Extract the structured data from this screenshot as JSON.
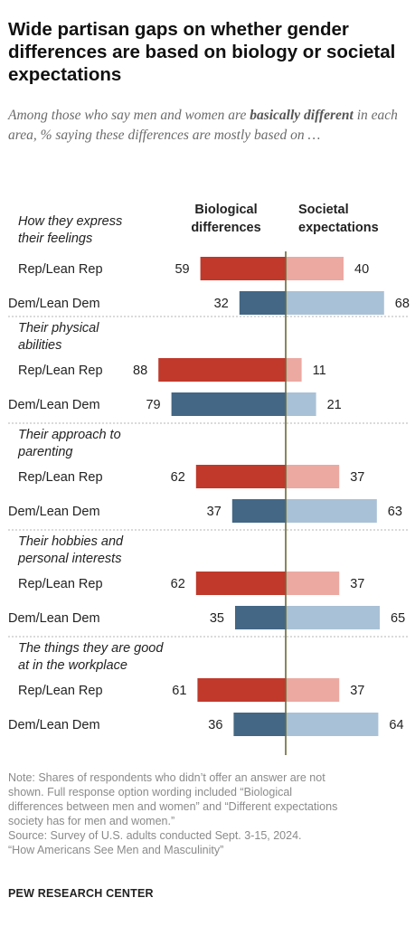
{
  "title": "Wide partisan gaps on whether gender differences are based on biology or societal expectations",
  "subtitle": {
    "part1": "Among those who say men and women are ",
    "bold": "basically different",
    "part2": " in each area, % saying these differences are mostly based on …"
  },
  "chart_data": {
    "type": "bar",
    "column_headers": {
      "left": [
        "Biological",
        "differences"
      ],
      "right": [
        "Societal",
        "expectations"
      ]
    },
    "groups": [
      {
        "label": [
          "How they express",
          "their feelings"
        ],
        "rows": [
          {
            "name": "Rep/Lean Rep",
            "biological": 59,
            "societal": 40
          },
          {
            "name": "Dem/Lean Dem",
            "biological": 32,
            "societal": 68
          }
        ]
      },
      {
        "label": [
          "Their physical",
          "abilities"
        ],
        "rows": [
          {
            "name": "Rep/Lean Rep",
            "biological": 88,
            "societal": 11
          },
          {
            "name": "Dem/Lean Dem",
            "biological": 79,
            "societal": 21
          }
        ]
      },
      {
        "label": [
          "Their approach to",
          "parenting"
        ],
        "rows": [
          {
            "name": "Rep/Lean Rep",
            "biological": 62,
            "societal": 37
          },
          {
            "name": "Dem/Lean Dem",
            "biological": 37,
            "societal": 63
          }
        ]
      },
      {
        "label": [
          "Their hobbies and",
          "personal interests"
        ],
        "rows": [
          {
            "name": "Rep/Lean Rep",
            "biological": 62,
            "societal": 37
          },
          {
            "name": "Dem/Lean Dem",
            "biological": 35,
            "societal": 65
          }
        ]
      },
      {
        "label": [
          "The things they are good",
          "at in the workplace"
        ],
        "rows": [
          {
            "name": "Rep/Lean Rep",
            "biological": 61,
            "societal": 37
          },
          {
            "name": "Dem/Lean Dem",
            "biological": 36,
            "societal": 64
          }
        ]
      }
    ],
    "colors": {
      "rep_biological": "#c0392b",
      "rep_societal": "#eba9a2",
      "dem_biological": "#436785",
      "dem_societal": "#a9c1d6",
      "axis": "#6b6b3a",
      "separator": "#b5b5b5"
    }
  },
  "note_lines": [
    "Note: Shares of respondents who didn’t offer an answer are not",
    "shown. Full response option wording included “Biological",
    "differences between men and women” and “Different expectations",
    "society has for men and women.”",
    "Source: Survey of U.S. adults conducted Sept. 3-15, 2024.",
    "“How Americans See Men and Masculinity”"
  ],
  "organization": "PEW RESEARCH CENTER"
}
